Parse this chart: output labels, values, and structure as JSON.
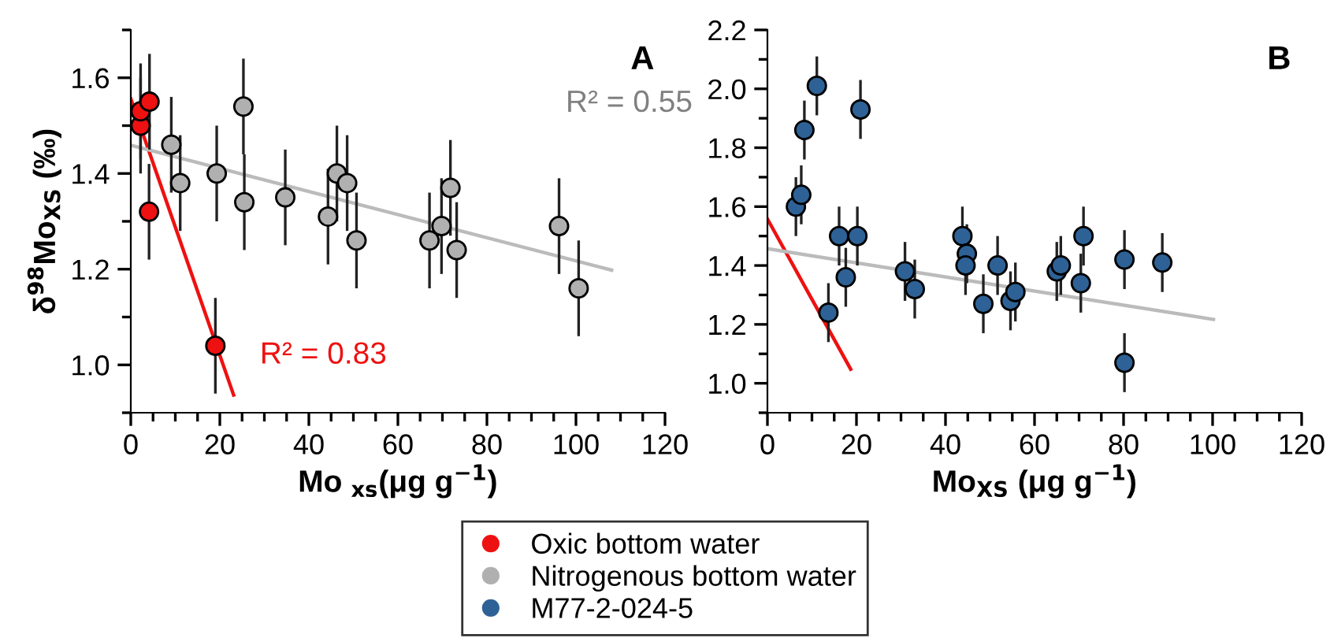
{
  "chart_data": [
    {
      "type": "scatter",
      "title": "A",
      "xlabel": "Mo $_{xs}$(μg g$^{−1}$)",
      "ylabel": "δ$^{98}$Mo$_{XS}$ (‰)",
      "xlim": [
        0,
        120
      ],
      "ylim": [
        0.9,
        1.7
      ],
      "xticks": [
        0,
        {
          "value": 5,
          "label": null
        },
        20,
        {
          "value": 10,
          "label": null
        },
        {
          "value": 15,
          "label": null
        },
        {
          "value": 25,
          "label": null
        },
        {
          "value": 30,
          "label": null
        },
        {
          "value": 35,
          "label": null
        },
        40,
        {
          "value": 45,
          "label": null
        },
        {
          "value": 50,
          "label": null
        },
        {
          "value": 55,
          "label": null
        },
        60,
        {
          "value": 65,
          "label": null
        },
        {
          "value": 70,
          "label": null
        },
        {
          "value": 75,
          "label": null
        },
        80,
        {
          "value": 85,
          "label": null
        },
        {
          "value": 90,
          "label": null
        },
        {
          "value": 95,
          "label": null
        },
        100,
        {
          "value": 105,
          "label": null
        },
        {
          "value": 110,
          "label": null
        },
        {
          "value": 115,
          "label": null
        },
        120
      ],
      "yticks": [
        {
          "value": 0.9,
          "label": null
        },
        {
          "value": 1.0,
          "label": "1.0"
        },
        {
          "value": 1.1,
          "label": null
        },
        1.2,
        {
          "value": 1.3,
          "label": null
        },
        1.4,
        {
          "value": 1.5,
          "label": null
        },
        1.6,
        {
          "value": 1.7,
          "label": null
        }
      ],
      "grid": false,
      "legend": "bottom",
      "marker": "circle",
      "series": [
        {
          "name": "Oxic bottom water",
          "color": "#ee1111",
          "x": [
            2.2,
            2.2,
            4.2,
            4.1,
            19.0
          ],
          "values": [
            1.5,
            1.53,
            1.55,
            1.32,
            1.04
          ],
          "errors": [
            0.1,
            0.1,
            0.1,
            0.1,
            0.1
          ]
        },
        {
          "name": "Nitrogenous bottom water",
          "color": "#b0b0b0",
          "x": [
            9.1,
            11.1,
            19.3,
            25.3,
            25.5,
            34.7,
            44.3,
            46.3,
            48.6,
            50.7,
            67.1,
            69.8,
            71.8,
            73.2,
            96.2,
            100.6
          ],
          "values": [
            1.46,
            1.38,
            1.4,
            1.54,
            1.34,
            1.35,
            1.31,
            1.4,
            1.38,
            1.26,
            1.26,
            1.29,
            1.37,
            1.24,
            1.29,
            1.16
          ],
          "errors": [
            0.1,
            0.1,
            0.1,
            0.1,
            0.1,
            0.1,
            0.1,
            0.1,
            0.1,
            0.1,
            0.1,
            0.1,
            0.1,
            0.1,
            0.1,
            0.1
          ]
        },
        {
          "type": "line",
          "marker": "none",
          "color": "#ee1111",
          "x": [
            0,
            23.1
          ],
          "values": [
            1.556,
            0.937
          ]
        },
        {
          "type": "line",
          "marker": "none",
          "color": "#bbbbbb",
          "x": [
            0,
            108
          ],
          "values": [
            1.459,
            1.198
          ]
        }
      ],
      "annotations": [
        "R² = 0.83",
        "R² = 0.55"
      ]
    },
    {
      "type": "scatter",
      "title": "B",
      "xlabel": "Mo$_{XS}$ (μg g$^{−1}$)",
      "xlim": [
        0,
        120
      ],
      "ylim": [
        0.9,
        2.2
      ],
      "xticks": [
        0,
        {
          "value": 5,
          "label": null
        },
        {
          "value": 10,
          "label": null
        },
        {
          "value": 15,
          "label": null
        },
        20,
        {
          "value": 25,
          "label": null
        },
        {
          "value": 30,
          "label": null
        },
        {
          "value": 35,
          "label": null
        },
        40,
        {
          "value": 45,
          "label": null
        },
        {
          "value": 50,
          "label": null
        },
        {
          "value": 55,
          "label": null
        },
        60,
        {
          "value": 65,
          "label": null
        },
        {
          "value": 70,
          "label": null
        },
        {
          "value": 75,
          "label": null
        },
        80,
        {
          "value": 85,
          "label": null
        },
        {
          "value": 90,
          "label": null
        },
        {
          "value": 95,
          "label": null
        },
        100,
        {
          "value": 105,
          "label": null
        },
        {
          "value": 110,
          "label": null
        },
        {
          "value": 115,
          "label": null
        },
        120
      ],
      "yticks": [
        {
          "value": 0.9,
          "label": null
        },
        {
          "value": 1.0,
          "label": "1.0"
        },
        {
          "value": 1.1,
          "label": null
        },
        1.2,
        {
          "value": 1.3,
          "label": null
        },
        1.4,
        {
          "value": 1.5,
          "label": null
        },
        1.6,
        {
          "value": 1.7,
          "label": null
        },
        1.8,
        {
          "value": 1.9,
          "label": null
        },
        {
          "value": 2.0,
          "label": "2.0"
        },
        {
          "value": 2.1,
          "label": null
        },
        2.2
      ],
      "grid": false,
      "legend": "bottom",
      "marker": "circle",
      "series": [
        {
          "name": "M77-2-024-5",
          "color": "#2e6296",
          "x": [
            6.4,
            7.6,
            8.3,
            11.1,
            20.9,
            16.1,
            20.2,
            13.7,
            17.6,
            30.9,
            33.1,
            43.8,
            44.8,
            44.5,
            48.5,
            51.7,
            54.6,
            55.7,
            65.0,
            65.9,
            70.4,
            71.0,
            80.2,
            80.2,
            88.7
          ],
          "values": [
            1.6,
            1.64,
            1.86,
            2.01,
            1.93,
            1.5,
            1.5,
            1.24,
            1.36,
            1.38,
            1.32,
            1.5,
            1.44,
            1.4,
            1.27,
            1.4,
            1.28,
            1.31,
            1.38,
            1.4,
            1.34,
            1.5,
            1.42,
            1.07,
            1.41
          ],
          "errors": [
            0.1,
            0.1,
            0.1,
            0.1,
            0.1,
            0.1,
            0.1,
            0.1,
            0.1,
            0.1,
            0.1,
            0.1,
            0.1,
            0.1,
            0.1,
            0.1,
            0.1,
            0.1,
            0.1,
            0.1,
            0.1,
            0.1,
            0.1,
            0.1,
            0.1
          ]
        },
        {
          "type": "line",
          "marker": "none",
          "color": "#ee1111",
          "x": [
            0,
            18.7
          ],
          "values": [
            1.558,
            1.048
          ]
        },
        {
          "type": "line",
          "marker": "none",
          "color": "#bbbbbb",
          "x": [
            0,
            100.2
          ],
          "values": [
            1.457,
            1.217
          ]
        }
      ]
    }
  ]
}
